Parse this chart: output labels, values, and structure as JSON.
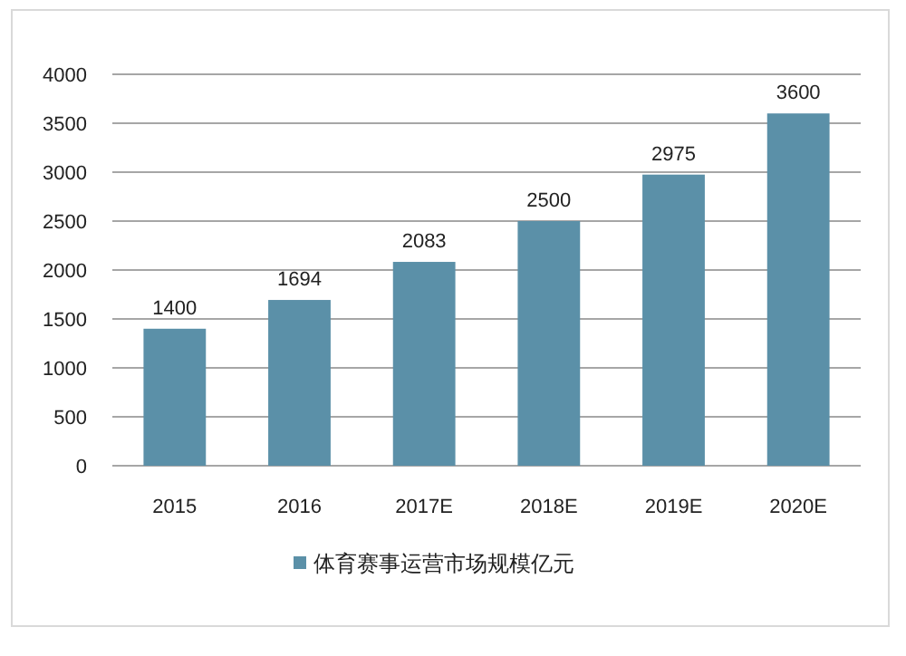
{
  "chart_data": {
    "type": "bar",
    "categories": [
      "2015",
      "2016",
      "2017E",
      "2018E",
      "2019E",
      "2020E"
    ],
    "series": [
      {
        "name": "体育赛事运营市场规模亿元",
        "color": "#5b90a8",
        "values": [
          1400,
          1694,
          2083,
          2500,
          2975,
          3600
        ]
      }
    ],
    "ylim": [
      0,
      4000
    ],
    "yticks": [
      0,
      500,
      1000,
      1500,
      2000,
      2500,
      3000,
      3500,
      4000
    ],
    "grid": "y",
    "legend": "bottom",
    "data_labels": true
  }
}
